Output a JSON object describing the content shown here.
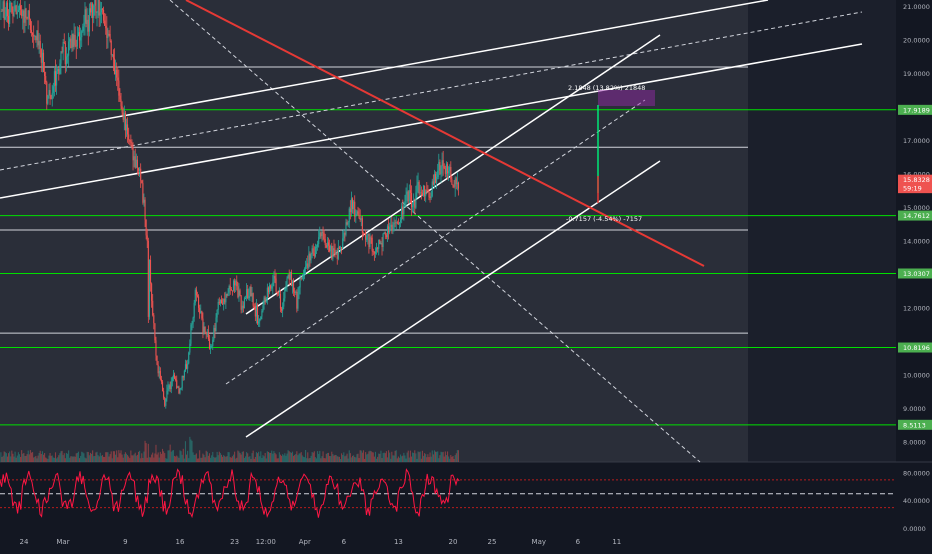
{
  "chart_data": {
    "type": "candlestick",
    "title": "",
    "price_axis": {
      "ylim": [
        7.4,
        21.2
      ],
      "ticks": [
        {
          "value": 21.0,
          "label": "21.0000"
        },
        {
          "value": 20.0,
          "label": "20.0000"
        },
        {
          "value": 19.0,
          "label": "19.0000"
        },
        {
          "value": 17.0,
          "label": "17.0000"
        },
        {
          "value": 16.0,
          "label": "16.0000"
        },
        {
          "value": 15.0,
          "label": "15.0000"
        },
        {
          "value": 14.0,
          "label": "14.0000"
        },
        {
          "value": 12.0,
          "label": "12.0000"
        },
        {
          "value": 10.0,
          "label": "10.0000"
        },
        {
          "value": 9.0,
          "label": "9.0000"
        },
        {
          "value": 8.0,
          "label": "8.0000"
        }
      ],
      "badges": [
        {
          "value": 17.9189,
          "label": "17.9189",
          "color": "#4caf50"
        },
        {
          "value": 15.8328,
          "label": "15.8328",
          "color": "#ef5350"
        },
        {
          "value": 15.58,
          "label": "59:19",
          "color": "#ef5350"
        },
        {
          "value": 14.7612,
          "label": "14.7612",
          "color": "#4caf50"
        },
        {
          "value": 13.0307,
          "label": "13.0307",
          "color": "#4caf50"
        },
        {
          "value": 10.8196,
          "label": "10.8196",
          "color": "#4caf50"
        },
        {
          "value": 8.5113,
          "label": "8.5113",
          "color": "#4caf50"
        }
      ]
    },
    "time_axis": {
      "labels": [
        {
          "day": 0,
          "label": "24"
        },
        {
          "day": 5,
          "label": "Mar"
        },
        {
          "day": 13,
          "label": "9"
        },
        {
          "day": 20,
          "label": "16"
        },
        {
          "day": 27,
          "label": "23"
        },
        {
          "day": 31,
          "label": "12:00"
        },
        {
          "day": 36,
          "label": "Apr"
        },
        {
          "day": 41,
          "label": "6"
        },
        {
          "day": 48,
          "label": "13"
        },
        {
          "day": 55,
          "label": "20"
        },
        {
          "day": 60,
          "label": "25"
        },
        {
          "day": 66,
          "label": "May"
        },
        {
          "day": 71,
          "label": "6"
        },
        {
          "day": 76,
          "label": "11"
        }
      ]
    },
    "price_path": [
      [
        -5,
        20.9
      ],
      [
        0,
        20.8
      ],
      [
        2,
        20.0
      ],
      [
        3,
        18.2
      ],
      [
        5,
        19.6
      ],
      [
        7,
        20.1
      ],
      [
        8,
        20.6
      ],
      [
        9,
        20.9
      ],
      [
        10,
        21.0
      ],
      [
        12,
        18.6
      ],
      [
        13,
        17.6
      ],
      [
        14,
        16.5
      ],
      [
        15,
        15.9
      ],
      [
        16,
        13.5
      ],
      [
        17,
        10.4
      ],
      [
        18,
        9.2
      ],
      [
        19,
        9.9
      ],
      [
        20,
        9.6
      ],
      [
        21,
        10.5
      ],
      [
        22,
        12.6
      ],
      [
        23,
        11.4
      ],
      [
        24,
        10.8
      ],
      [
        25,
        12.2
      ],
      [
        26,
        12.3
      ],
      [
        27,
        12.7
      ],
      [
        28,
        12.1
      ],
      [
        29,
        12.6
      ],
      [
        30,
        11.6
      ],
      [
        31,
        12.4
      ],
      [
        32,
        12.9
      ],
      [
        33,
        12.1
      ],
      [
        34,
        13.0
      ],
      [
        35,
        12.2
      ],
      [
        36,
        13.3
      ],
      [
        37,
        13.6
      ],
      [
        38,
        14.3
      ],
      [
        39,
        13.9
      ],
      [
        40,
        13.5
      ],
      [
        41,
        14.1
      ],
      [
        42,
        15.1
      ],
      [
        43,
        14.7
      ],
      [
        44,
        14.1
      ],
      [
        45,
        13.7
      ],
      [
        46,
        14.0
      ],
      [
        47,
        14.6
      ],
      [
        48,
        14.5
      ],
      [
        49,
        15.4
      ],
      [
        50,
        15.2
      ],
      [
        51,
        15.7
      ],
      [
        52,
        15.4
      ],
      [
        53,
        16.1
      ],
      [
        54,
        16.3
      ],
      [
        55,
        15.7
      ],
      [
        55.8,
        15.4
      ]
    ],
    "indicator": {
      "ylim": [
        -5,
        90
      ],
      "ticks": [
        {
          "value": 80,
          "label": "80.0000"
        },
        {
          "value": 40,
          "label": "40.0000"
        },
        {
          "value": 0,
          "label": "0.0000"
        }
      ],
      "levels": [
        70,
        50,
        30
      ]
    },
    "horizontal_levels": [
      {
        "value": 19.2,
        "color": "#d1d4dc"
      },
      {
        "value": 17.92,
        "color": "#00e000"
      },
      {
        "value": 16.8,
        "color": "#d1d4dc"
      },
      {
        "value": 14.76,
        "color": "#00e000"
      },
      {
        "value": 14.33,
        "color": "#d1d4dc"
      },
      {
        "value": 13.03,
        "color": "#00e000"
      },
      {
        "value": 11.25,
        "color": "#d1d4dc"
      },
      {
        "value": 10.82,
        "color": "#00e000"
      },
      {
        "value": 8.51,
        "color": "#00e000"
      }
    ],
    "measurements": [
      {
        "label": "2.1848 (13.82%) 21848"
      },
      {
        "label": "-0.7157 (-4.54%) -7157"
      }
    ]
  }
}
